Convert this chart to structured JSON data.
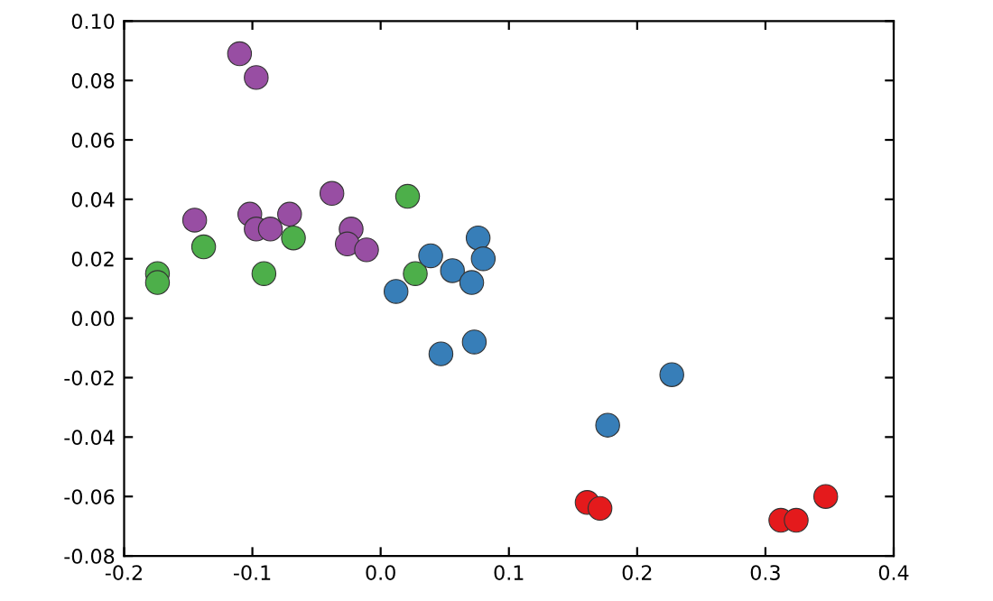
{
  "chart_data": {
    "type": "scatter",
    "series": [
      {
        "color": "#984ea3",
        "x": [
          -0.11,
          -0.097,
          -0.145,
          -0.102,
          -0.071,
          -0.097,
          -0.086,
          -0.038,
          -0.023,
          -0.026,
          -0.011
        ],
        "values": [
          0.089,
          0.081,
          0.033,
          0.035,
          0.035,
          0.03,
          0.03,
          0.042,
          0.03,
          0.025,
          0.023
        ]
      },
      {
        "color": "#4daf4a",
        "x": [
          0.021,
          -0.138,
          -0.068,
          -0.174,
          -0.174,
          -0.091,
          0.027
        ],
        "values": [
          0.041,
          0.024,
          0.027,
          0.015,
          0.012,
          0.015,
          0.015
        ]
      },
      {
        "color": "#377eb8",
        "x": [
          0.076,
          0.08,
          0.039,
          0.056,
          0.071,
          0.012,
          0.047,
          0.073,
          0.227,
          0.177
        ],
        "values": [
          0.027,
          0.02,
          0.021,
          0.016,
          0.012,
          0.009,
          -0.012,
          -0.008,
          -0.019,
          -0.036
        ]
      },
      {
        "color": "#e41a1c",
        "x": [
          0.161,
          0.171,
          0.312,
          0.324,
          0.347
        ],
        "values": [
          -0.062,
          -0.064,
          -0.068,
          -0.068,
          -0.06
        ]
      }
    ],
    "marker": "circle",
    "xlim": [
      -0.2,
      0.4
    ],
    "ylim": [
      -0.08,
      0.1
    ],
    "xticks": [
      {
        "value": -0.2,
        "label": "-0.2"
      },
      {
        "value": -0.1,
        "label": "-0.1"
      },
      {
        "value": 0.0,
        "label": "0.0"
      },
      0.1,
      0.2,
      0.3,
      0.4
    ],
    "yticks": [
      {
        "value": -0.08,
        "label": "-0.08"
      },
      {
        "value": -0.06,
        "label": "-0.06"
      },
      {
        "value": -0.04,
        "label": "-0.04"
      },
      {
        "value": -0.02,
        "label": "-0.02"
      },
      {
        "value": 0.0,
        "label": "0.00"
      },
      {
        "value": 0.02,
        "label": "0.02"
      },
      {
        "value": 0.04,
        "label": "0.04"
      },
      {
        "value": 0.06,
        "label": "0.06"
      },
      {
        "value": 0.08,
        "label": "0.08"
      },
      {
        "value": 0.1,
        "label": "0.10"
      }
    ],
    "grid": false,
    "legend": false
  }
}
